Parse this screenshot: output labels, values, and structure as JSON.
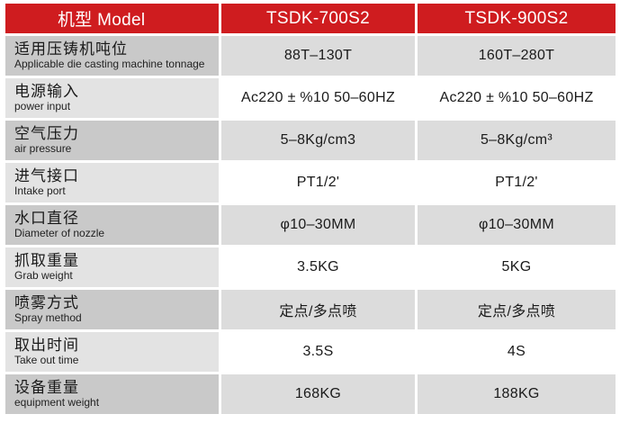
{
  "header": {
    "label": "机型 Model",
    "model_a": "TSDK-700S2",
    "model_b": "TSDK-900S2"
  },
  "rows": [
    {
      "cn": "适用压铸机吨位",
      "en": "Applicable die casting machine tonnage",
      "a": "88T–130T",
      "b": "160T–280T"
    },
    {
      "cn": "电源输入",
      "en": "power input",
      "a": "Ac220 ± %10 50–60HZ",
      "b": "Ac220 ± %10 50–60HZ"
    },
    {
      "cn": "空气压力",
      "en": "air pressure",
      "a": "5–8Kg/cm3",
      "b": "5–8Kg/cm³"
    },
    {
      "cn": "进气接口",
      "en": "Intake port",
      "a": "PT1/2'",
      "b": "PT1/2'"
    },
    {
      "cn": "水口直径",
      "en": "Diameter of nozzle",
      "a": "φ10–30MM",
      "b": "φ10–30MM"
    },
    {
      "cn": "抓取重量",
      "en": "Grab weight",
      "a": "3.5KG",
      "b": "5KG"
    },
    {
      "cn": "喷雾方式",
      "en": "Spray method",
      "a": "定点/多点喷",
      "b": "定点/多点喷"
    },
    {
      "cn": "取出时间",
      "en": "Take out time",
      "a": "3.5S",
      "b": "4S"
    },
    {
      "cn": "设备重量",
      "en": "equipment weight",
      "a": "168KG",
      "b": "188KG"
    }
  ]
}
